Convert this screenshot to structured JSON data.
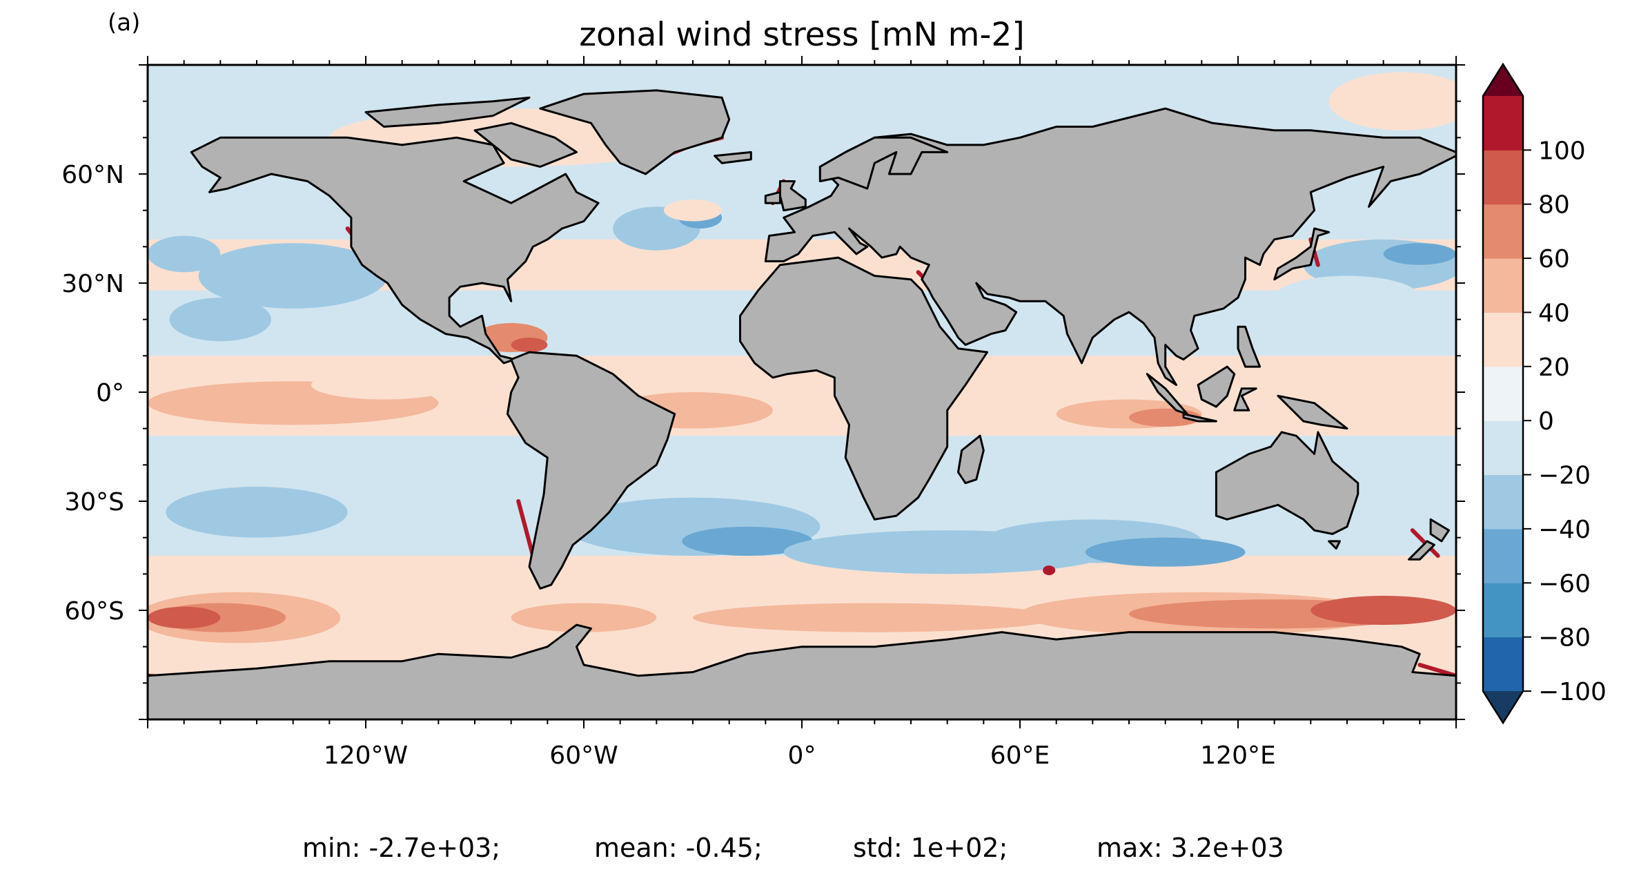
{
  "panel_label": "(a)",
  "title": "zonal wind stress [mN m-2]",
  "map": {
    "projection": "equirectangular",
    "lon_range": [
      -180,
      180
    ],
    "lat_range": [
      -90,
      90
    ],
    "land_color": "#b2b2b2",
    "coastline_color": "#000000",
    "ocean_background_color": "#e7eef6",
    "lon_tick_labels": [
      {
        "lon": -120,
        "label": "120°W"
      },
      {
        "lon": -60,
        "label": "60°W"
      },
      {
        "lon": 0,
        "label": "0°"
      },
      {
        "lon": 60,
        "label": "60°E"
      },
      {
        "lon": 120,
        "label": "120°E"
      }
    ],
    "lat_tick_labels": [
      {
        "lat": 60,
        "label": "60°N"
      },
      {
        "lat": 30,
        "label": "30°N"
      },
      {
        "lat": 0,
        "label": "0°"
      },
      {
        "lat": -30,
        "label": "30°S"
      },
      {
        "lat": -60,
        "label": "60°S"
      }
    ]
  },
  "colorbar": {
    "levels": [
      -100,
      -80,
      -60,
      -40,
      -20,
      0,
      20,
      40,
      60,
      80,
      100
    ],
    "tick_labels": [
      "−100",
      "−80",
      "−60",
      "−40",
      "−20",
      "0",
      "20",
      "40",
      "60",
      "80",
      "100"
    ],
    "extend": "both",
    "colors": [
      "#2166ac",
      "#4393c3",
      "#6aa8d3",
      "#9fc9e3",
      "#d1e5f0",
      "#eef3f8",
      "#fbe0d0",
      "#f4b89c",
      "#e48a6e",
      "#d05a4c",
      "#b2182b"
    ],
    "under_color": "#173b63",
    "over_color": "#67001f"
  },
  "stats": {
    "min": "min: -2.7e+03;",
    "mean": "mean: -0.45;",
    "std": "std: 1e+02;",
    "max": "max: 3.2e+03"
  }
}
